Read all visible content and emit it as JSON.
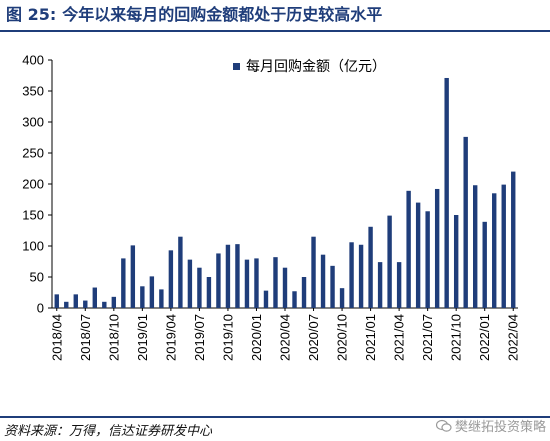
{
  "header": {
    "figure_label": "图 25:",
    "title": "今年以来每月的回购金额都处于历史较高水平"
  },
  "footer": {
    "source": "资料来源：万得，信达证券研发中心",
    "watermark": "樊继拓投资策略"
  },
  "colors": {
    "bar": "#1f3d7a",
    "accent": "#1f3d7a"
  },
  "chart_data": {
    "type": "bar",
    "legend_position": "top-center",
    "grid": false,
    "ylim": [
      0,
      400
    ],
    "yticks": [
      0,
      50,
      100,
      150,
      200,
      250,
      300,
      350,
      400
    ],
    "xticks": [
      "2018/04",
      "2018/07",
      "2018/10",
      "2019/01",
      "2019/04",
      "2019/07",
      "2019/10",
      "2020/01",
      "2020/04",
      "2020/07",
      "2020/10",
      "2021/01",
      "2021/04",
      "2021/07",
      "2021/10",
      "2022/01",
      "2022/04"
    ],
    "categories": [
      "2018/04",
      "2018/05",
      "2018/06",
      "2018/07",
      "2018/08",
      "2018/09",
      "2018/10",
      "2018/11",
      "2018/12",
      "2019/01",
      "2019/02",
      "2019/03",
      "2019/04",
      "2019/05",
      "2019/06",
      "2019/07",
      "2019/08",
      "2019/09",
      "2019/10",
      "2019/11",
      "2019/12",
      "2020/01",
      "2020/02",
      "2020/03",
      "2020/04",
      "2020/05",
      "2020/06",
      "2020/07",
      "2020/08",
      "2020/09",
      "2020/10",
      "2020/11",
      "2020/12",
      "2021/01",
      "2021/02",
      "2021/03",
      "2021/04",
      "2021/05",
      "2021/06",
      "2021/07",
      "2021/08",
      "2021/09",
      "2021/10",
      "2021/11",
      "2021/12",
      "2022/01",
      "2022/02",
      "2022/03",
      "2022/04"
    ],
    "series": [
      {
        "name": "每月回购金额（亿元）",
        "values": [
          22,
          10,
          22,
          12,
          33,
          10,
          18,
          80,
          101,
          35,
          51,
          30,
          93,
          115,
          78,
          65,
          50,
          88,
          102,
          103,
          78,
          80,
          28,
          82,
          65,
          27,
          50,
          115,
          86,
          68,
          32,
          106,
          102,
          131,
          74,
          149,
          74,
          189,
          170,
          156,
          192,
          371,
          150,
          276,
          198,
          139,
          185,
          199,
          220
        ]
      }
    ]
  }
}
